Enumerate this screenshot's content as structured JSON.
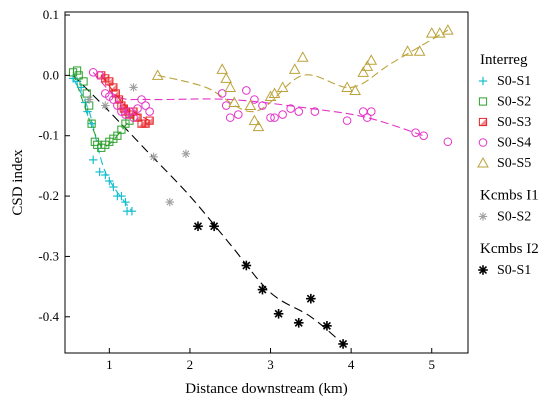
{
  "chart_data": {
    "type": "scatter",
    "title": "",
    "xlabel": "Distance downstream (km)",
    "ylabel": "CSD index",
    "xlim": [
      0.45,
      5.45
    ],
    "ylim": [
      -0.46,
      0.105
    ],
    "x_ticks": [
      1,
      2,
      3,
      4,
      5
    ],
    "y_ticks": [
      0.1,
      0.0,
      -0.1,
      -0.2,
      -0.3,
      -0.4
    ],
    "y_tick_labels": [
      "0.1",
      "0.0",
      "-0.1",
      "-0.2",
      "-0.3",
      "-0.4"
    ],
    "grid": false,
    "legend_position": "right",
    "legend_groups": [
      {
        "title": "Interreg",
        "entries": [
          "S0-S1",
          "S0-S2",
          "S0-S3",
          "S0-S4",
          "S0-S5"
        ]
      },
      {
        "title": "Kcmbs I1",
        "entries": [
          "S0-S2"
        ]
      },
      {
        "title": "Kcmbs I2",
        "entries": [
          "S0-S1"
        ]
      }
    ],
    "series": [
      {
        "name": "S0-S1",
        "group": "Interreg",
        "marker": "plus",
        "color": "#17BECF",
        "points": [
          [
            0.55,
            -0.005
          ],
          [
            0.6,
            -0.01
          ],
          [
            0.65,
            -0.02
          ],
          [
            0.7,
            -0.045
          ],
          [
            0.73,
            -0.06
          ],
          [
            0.78,
            -0.08
          ],
          [
            0.8,
            -0.14
          ],
          [
            0.88,
            -0.16
          ],
          [
            0.95,
            -0.165
          ],
          [
            1.0,
            -0.175
          ],
          [
            1.05,
            -0.185
          ],
          [
            1.1,
            -0.2
          ],
          [
            1.15,
            -0.2
          ],
          [
            1.2,
            -0.21
          ],
          [
            1.22,
            -0.225
          ],
          [
            1.28,
            -0.225
          ]
        ],
        "trend": [
          [
            0.55,
            -0.005
          ],
          [
            0.75,
            -0.06
          ],
          [
            0.95,
            -0.16
          ],
          [
            1.28,
            -0.225
          ]
        ]
      },
      {
        "name": "S0-S2",
        "group": "Interreg",
        "marker": "square",
        "color": "#2CA02C",
        "points": [
          [
            0.55,
            0.005
          ],
          [
            0.6,
            0.008
          ],
          [
            0.62,
            0.0
          ],
          [
            0.68,
            -0.01
          ],
          [
            0.72,
            -0.03
          ],
          [
            0.75,
            -0.05
          ],
          [
            0.78,
            -0.08
          ],
          [
            0.82,
            -0.11
          ],
          [
            0.85,
            -0.115
          ],
          [
            0.9,
            -0.12
          ],
          [
            0.95,
            -0.115
          ],
          [
            1.0,
            -0.11
          ],
          [
            1.05,
            -0.105
          ],
          [
            1.1,
            -0.1
          ],
          [
            1.15,
            -0.09
          ],
          [
            1.2,
            -0.08
          ],
          [
            1.25,
            -0.075
          ]
        ],
        "trend": [
          [
            0.55,
            0.005
          ],
          [
            0.8,
            -0.09
          ],
          [
            0.95,
            -0.118
          ],
          [
            1.25,
            -0.075
          ]
        ]
      },
      {
        "name": "S0-S3",
        "group": "Interreg",
        "marker": "square-half",
        "color": "#E8232A",
        "points": [
          [
            0.9,
            0.0
          ],
          [
            0.95,
            -0.005
          ],
          [
            1.0,
            -0.01
          ],
          [
            1.05,
            -0.02
          ],
          [
            1.08,
            -0.03
          ],
          [
            1.12,
            -0.04
          ],
          [
            1.15,
            -0.05
          ],
          [
            1.18,
            -0.055
          ],
          [
            1.2,
            -0.06
          ],
          [
            1.25,
            -0.065
          ],
          [
            1.3,
            -0.06
          ],
          [
            1.35,
            -0.07
          ],
          [
            1.4,
            -0.08
          ],
          [
            1.45,
            -0.08
          ],
          [
            1.5,
            -0.075
          ]
        ],
        "trend": [
          [
            0.9,
            0.0
          ],
          [
            1.2,
            -0.05
          ],
          [
            1.5,
            -0.075
          ]
        ]
      },
      {
        "name": "S0-S4",
        "group": "Interreg",
        "marker": "circle",
        "color": "#E334C8",
        "points": [
          [
            0.8,
            0.005
          ],
          [
            0.88,
            0.0
          ],
          [
            0.95,
            -0.03
          ],
          [
            1.0,
            -0.035
          ],
          [
            1.05,
            -0.04
          ],
          [
            1.1,
            -0.05
          ],
          [
            1.15,
            -0.06
          ],
          [
            1.2,
            -0.065
          ],
          [
            1.25,
            -0.06
          ],
          [
            1.3,
            -0.07
          ],
          [
            1.35,
            -0.055
          ],
          [
            1.4,
            -0.04
          ],
          [
            1.45,
            -0.05
          ],
          [
            1.5,
            -0.06
          ],
          [
            2.4,
            -0.03
          ],
          [
            2.45,
            -0.05
          ],
          [
            2.5,
            -0.07
          ],
          [
            2.6,
            -0.065
          ],
          [
            2.7,
            -0.025
          ],
          [
            2.8,
            -0.04
          ],
          [
            2.9,
            -0.05
          ],
          [
            3.0,
            -0.07
          ],
          [
            3.05,
            -0.07
          ],
          [
            3.15,
            -0.065
          ],
          [
            3.25,
            -0.055
          ],
          [
            3.35,
            -0.06
          ],
          [
            3.55,
            -0.06
          ],
          [
            3.95,
            -0.075
          ],
          [
            4.15,
            -0.06
          ],
          [
            4.2,
            -0.07
          ],
          [
            4.25,
            -0.06
          ],
          [
            4.8,
            -0.095
          ],
          [
            4.9,
            -0.1
          ],
          [
            5.2,
            -0.11
          ]
        ],
        "trend": [
          [
            0.8,
            0.005
          ],
          [
            1.1,
            -0.035
          ],
          [
            1.5,
            -0.04
          ],
          [
            2.5,
            -0.04
          ],
          [
            3.5,
            -0.055
          ],
          [
            4.2,
            -0.07
          ],
          [
            4.9,
            -0.1
          ]
        ]
      },
      {
        "name": "S0-S5",
        "group": "Interreg",
        "marker": "triangle",
        "color": "#BCA23A",
        "points": [
          [
            1.6,
            0.0
          ],
          [
            2.4,
            0.01
          ],
          [
            2.45,
            -0.005
          ],
          [
            2.5,
            -0.02
          ],
          [
            2.55,
            -0.045
          ],
          [
            2.75,
            -0.05
          ],
          [
            2.8,
            -0.075
          ],
          [
            2.85,
            -0.085
          ],
          [
            3.0,
            -0.035
          ],
          [
            3.05,
            -0.03
          ],
          [
            3.15,
            -0.02
          ],
          [
            3.3,
            0.01
          ],
          [
            3.4,
            0.03
          ],
          [
            3.95,
            -0.02
          ],
          [
            4.05,
            -0.025
          ],
          [
            4.15,
            0.005
          ],
          [
            4.2,
            0.015
          ],
          [
            4.25,
            0.025
          ],
          [
            4.7,
            0.04
          ],
          [
            4.85,
            0.04
          ],
          [
            5.0,
            0.07
          ],
          [
            5.1,
            0.07
          ],
          [
            5.2,
            0.075
          ]
        ],
        "trend": [
          [
            1.6,
            0.0
          ],
          [
            2.2,
            -0.02
          ],
          [
            2.8,
            -0.06
          ],
          [
            3.4,
            0.0
          ],
          [
            4.0,
            -0.02
          ],
          [
            4.5,
            0.02
          ],
          [
            5.2,
            0.075
          ]
        ]
      },
      {
        "name": "S0-S2",
        "group": "Kcmbs I1",
        "marker": "asterisk",
        "color": "#A0A0A0",
        "points": [
          [
            0.75,
            -0.04
          ],
          [
            0.95,
            -0.05
          ],
          [
            1.3,
            -0.02
          ],
          [
            1.55,
            -0.135
          ],
          [
            1.75,
            -0.21
          ],
          [
            1.95,
            -0.13
          ]
        ],
        "trend": []
      },
      {
        "name": "S0-S1",
        "group": "Kcmbs I2",
        "marker": "asterisk-bold",
        "color": "#000000",
        "points": [
          [
            2.1,
            -0.25
          ],
          [
            2.3,
            -0.25
          ],
          [
            2.7,
            -0.315
          ],
          [
            2.9,
            -0.355
          ],
          [
            3.1,
            -0.395
          ],
          [
            3.35,
            -0.41
          ],
          [
            3.5,
            -0.37
          ],
          [
            3.7,
            -0.415
          ],
          [
            3.9,
            -0.445
          ]
        ],
        "trend": [
          [
            0.55,
            0.0
          ],
          [
            1.0,
            -0.06
          ],
          [
            1.5,
            -0.13
          ],
          [
            2.0,
            -0.2
          ],
          [
            2.5,
            -0.28
          ],
          [
            3.0,
            -0.36
          ],
          [
            3.5,
            -0.4
          ],
          [
            3.9,
            -0.445
          ]
        ]
      }
    ]
  }
}
